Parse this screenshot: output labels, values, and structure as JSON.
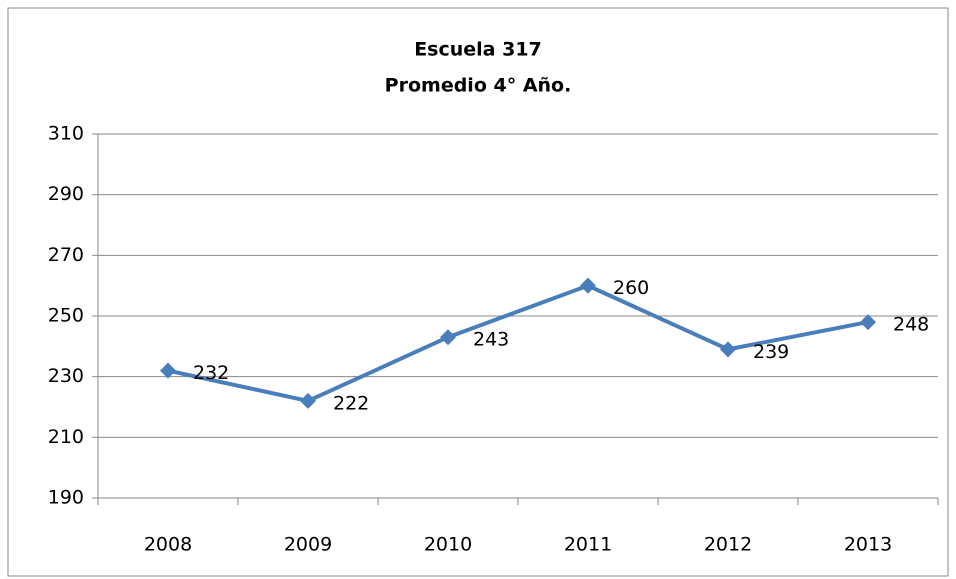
{
  "chart_data": {
    "type": "line",
    "title": "Escuela 317",
    "subtitle": "Promedio 4° Año.",
    "categories": [
      "2008",
      "2009",
      "2010",
      "2011",
      "2012",
      "2013"
    ],
    "series": [
      {
        "name": "Promedio",
        "color": "#4a7ebb",
        "values": [
          232,
          222,
          243,
          260,
          239,
          248
        ]
      }
    ],
    "ylim": [
      190,
      310
    ],
    "yticks": [
      190,
      210,
      230,
      250,
      270,
      290,
      310
    ],
    "grid": true,
    "legend": false
  }
}
